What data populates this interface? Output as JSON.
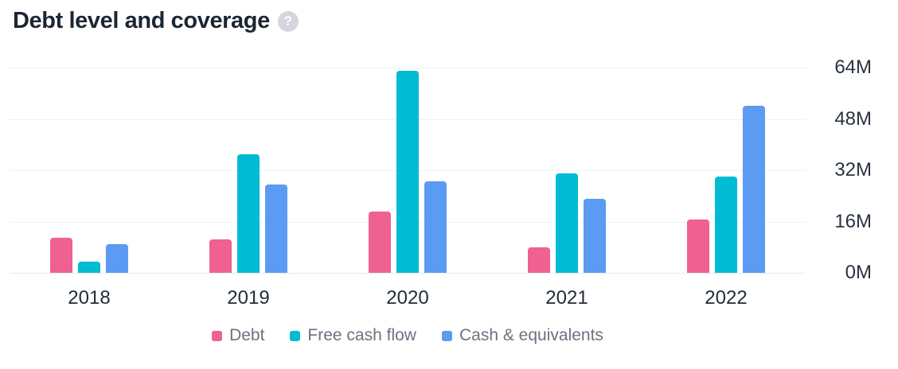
{
  "header": {
    "title": "Debt level and coverage",
    "help_glyph": "?"
  },
  "colors": {
    "debt": "#ef6190",
    "free_cash_flow": "#00bcd2",
    "cash_equivalents": "#5b9bf3",
    "gridline": "#edf1f6",
    "baseline": "#e3e8ef",
    "axis_text": "#2a3342",
    "legend_text": "#6b7380",
    "title_text": "#1c2633",
    "help_icon_bg": "#d3d6dd"
  },
  "chart_data": {
    "type": "bar",
    "title": "Debt level and coverage",
    "unit": "M",
    "categories": [
      "2018",
      "2019",
      "2020",
      "2021",
      "2022"
    ],
    "series": [
      {
        "name": "Debt",
        "color": "#ef6190",
        "values": [
          11,
          10.5,
          19,
          8,
          16.5
        ]
      },
      {
        "name": "Free cash flow",
        "color": "#00bcd2",
        "values": [
          3.5,
          37,
          63,
          31,
          30
        ]
      },
      {
        "name": "Cash & equivalents",
        "color": "#5b9bf3",
        "values": [
          9,
          27.5,
          28.5,
          23,
          52
        ]
      }
    ],
    "ylim": [
      0,
      64
    ],
    "yticks": [
      0,
      16,
      32,
      48,
      64
    ],
    "ytick_labels": [
      "0M",
      "16M",
      "32M",
      "48M",
      "64M"
    ],
    "xlabel": "",
    "ylabel": "",
    "grid": true,
    "y_axis_side": "right",
    "legend_position": "bottom"
  }
}
